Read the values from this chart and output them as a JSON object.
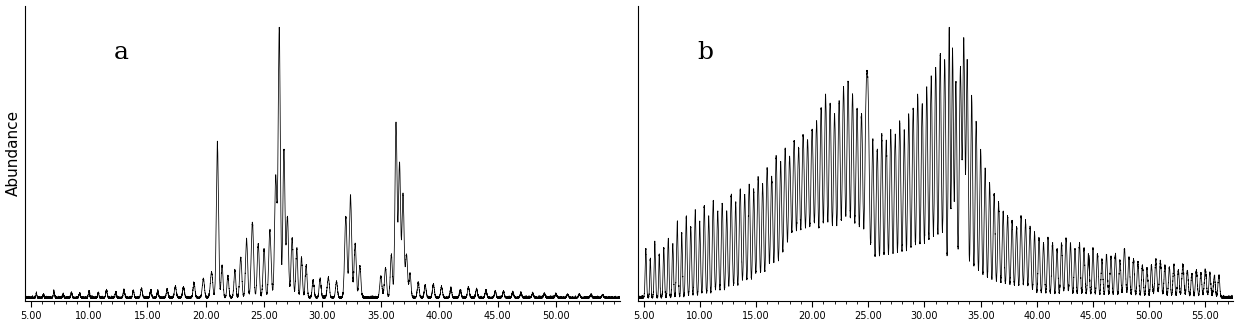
{
  "panel_a_label": "a",
  "panel_b_label": "b",
  "ylabel": "Abundance",
  "xlim_a": [
    4.5,
    55.5
  ],
  "xlim_b": [
    4.5,
    57.5
  ],
  "xticks_a": [
    5.0,
    10.0,
    15.0,
    20.0,
    25.0,
    30.0,
    35.0,
    40.0,
    45.0,
    50.0
  ],
  "xticks_b": [
    5.0,
    10.0,
    15.0,
    20.0,
    25.0,
    30.0,
    35.0,
    40.0,
    45.0,
    50.0,
    55.0
  ],
  "background_color": "#ffffff",
  "line_color": "#000000",
  "label_fontsize": 11,
  "tick_fontsize": 7,
  "panel_label_fontsize": 18
}
